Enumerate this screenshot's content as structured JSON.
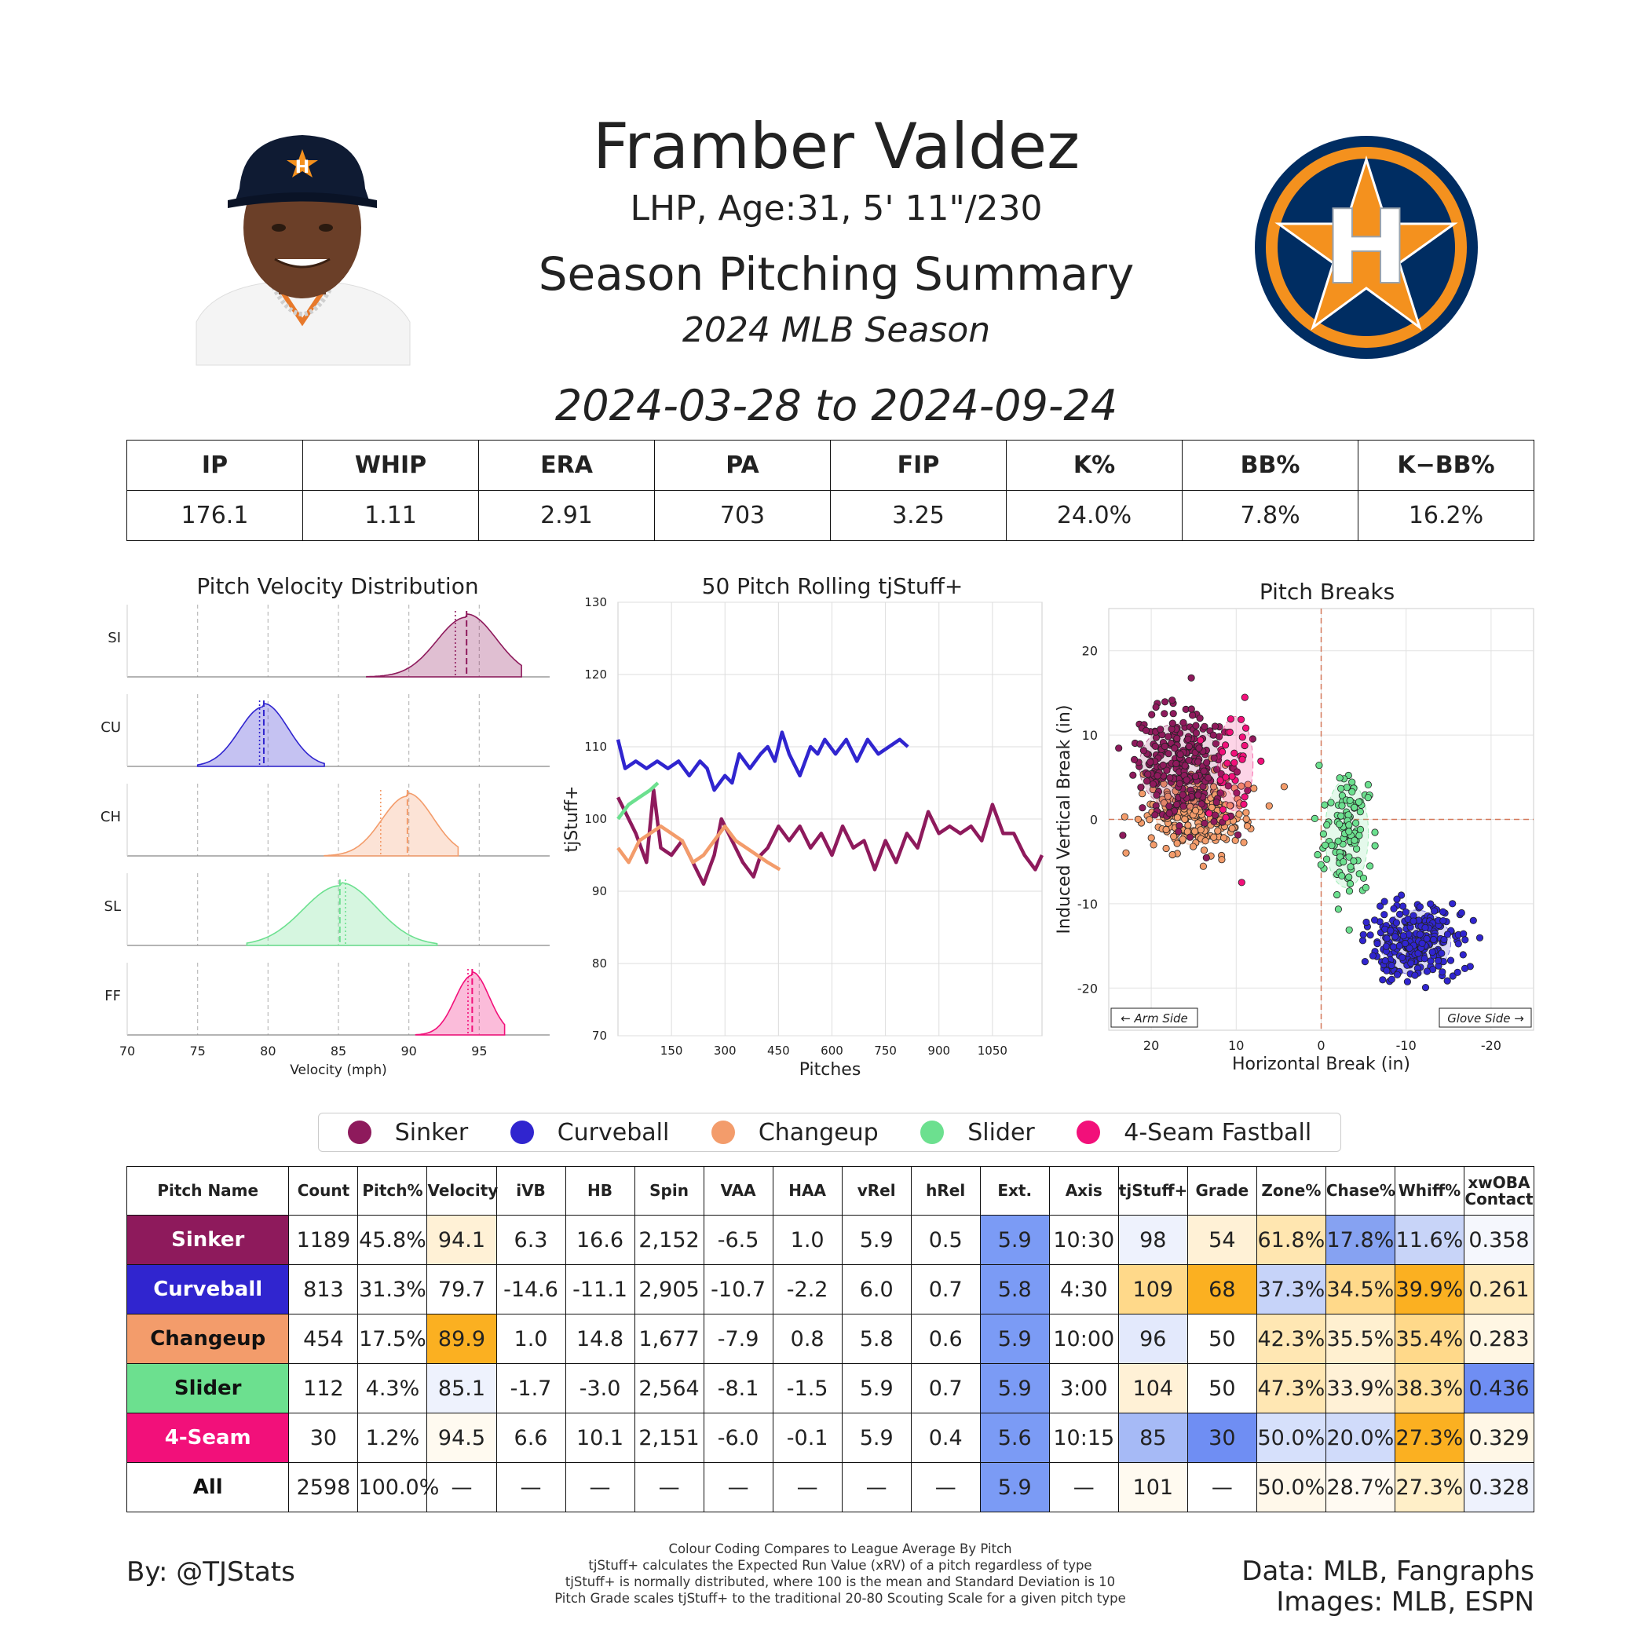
{
  "header": {
    "player_name": "Framber Valdez",
    "player_info": "LHP, Age:31, 5' 11\"/230",
    "summary_title": "Season Pitching Summary",
    "season_label": "2024 MLB Season",
    "date_range": "2024-03-28 to 2024-09-24",
    "logo_letter": "H"
  },
  "colors": {
    "sinker": "#8e1a5c",
    "curveball": "#3025cf",
    "changeup": "#f39c6b",
    "slider": "#6ce08f",
    "fourseam": "#f2107a",
    "astros_navy": "#002d62",
    "astros_orange": "#f4911e",
    "blue_strong": "#6f8ef3",
    "orange_strong": "#fbb021"
  },
  "summary_table": {
    "headers": [
      "IP",
      "WHIP",
      "ERA",
      "PA",
      "FIP",
      "K%",
      "BB%",
      "K−BB%"
    ],
    "values": [
      "176.1",
      "1.11",
      "2.91",
      "703",
      "3.25",
      "24.0%",
      "7.8%",
      "16.2%"
    ]
  },
  "chart_data": [
    {
      "type": "area",
      "title": "Pitch Velocity Distribution",
      "xlabel": "Velocity (mph)",
      "xlim": [
        70,
        100
      ],
      "xticks": [
        "70",
        "75",
        "80",
        "85",
        "90",
        "95"
      ],
      "series": [
        {
          "name": "SI",
          "mean": 94.1,
          "league": 93.3,
          "range": [
            87,
            98
          ]
        },
        {
          "name": "CU",
          "mean": 79.7,
          "league": 79.4,
          "range": [
            75,
            84
          ]
        },
        {
          "name": "CH",
          "mean": 89.9,
          "league": 88.0,
          "range": [
            84,
            93.5
          ]
        },
        {
          "name": "SL",
          "mean": 85.1,
          "league": 85.5,
          "range": [
            78.5,
            92
          ]
        },
        {
          "name": "FF",
          "mean": 94.5,
          "league": 94.2,
          "range": [
            90.5,
            96.8
          ]
        }
      ]
    },
    {
      "type": "line",
      "title": "50 Pitch Rolling tjStuff+",
      "xlabel": "Pitches",
      "ylabel": "tjStuff+",
      "xlim": [
        0,
        1189
      ],
      "ylim": [
        70,
        130
      ],
      "xticks": [
        "150",
        "300",
        "450",
        "600",
        "750",
        "900",
        "1050"
      ],
      "yticks": [
        "70",
        "80",
        "90",
        "100",
        "110",
        "120",
        "130"
      ],
      "series": [
        {
          "name": "Sinker",
          "x": [
            0,
            20,
            50,
            80,
            100,
            120,
            150,
            180,
            210,
            240,
            270,
            290,
            320,
            350,
            380,
            400,
            420,
            450,
            480,
            510,
            540,
            570,
            600,
            630,
            660,
            690,
            720,
            750,
            780,
            810,
            840,
            870,
            900,
            930,
            960,
            990,
            1020,
            1050,
            1080,
            1110,
            1140,
            1170,
            1189
          ],
          "y": [
            103,
            101,
            98,
            94,
            104,
            96,
            95,
            97,
            94,
            91,
            95,
            100,
            97,
            94,
            92,
            95,
            96,
            99,
            97,
            99,
            96,
            98,
            95,
            99,
            96,
            97,
            93,
            97,
            94,
            98,
            96,
            101,
            98,
            99,
            98,
            99,
            97,
            102,
            98,
            98,
            95,
            93,
            95
          ]
        },
        {
          "name": "Curveball",
          "x": [
            0,
            20,
            50,
            80,
            110,
            140,
            170,
            200,
            230,
            250,
            270,
            300,
            320,
            340,
            370,
            400,
            420,
            440,
            460,
            480,
            510,
            540,
            560,
            580,
            610,
            640,
            670,
            700,
            730,
            760,
            790,
            813
          ],
          "y": [
            111,
            107,
            108,
            107,
            108,
            107,
            108,
            106,
            108,
            107,
            104,
            106,
            105,
            109,
            107,
            109,
            110,
            108,
            112,
            109,
            106,
            110,
            109,
            111,
            109,
            111,
            108,
            111,
            109,
            110,
            111,
            110
          ]
        },
        {
          "name": "Changeup",
          "x": [
            0,
            30,
            60,
            90,
            120,
            150,
            180,
            210,
            240,
            270,
            300,
            330,
            360,
            390,
            420,
            454
          ],
          "y": [
            96,
            94,
            97,
            98,
            99,
            98,
            97,
            94,
            95,
            97,
            99,
            97,
            96,
            95,
            94,
            93
          ]
        },
        {
          "name": "Slider",
          "x": [
            0,
            30,
            60,
            90,
            112
          ],
          "y": [
            100,
            102,
            103,
            104,
            105
          ]
        }
      ]
    },
    {
      "type": "scatter",
      "title": "Pitch Breaks",
      "xlabel": "Horizontal Break (in)",
      "ylabel": "Induced Vertical Break (in)",
      "xlim": [
        25,
        -25
      ],
      "ylim": [
        -25,
        25
      ],
      "xticks": [
        "20",
        "10",
        "0",
        "-10",
        "-20"
      ],
      "yticks": [
        "20",
        "10",
        "0",
        "-10",
        "-20"
      ],
      "annotations": [
        "← Arm Side",
        "Glove Side →"
      ],
      "series": [
        {
          "name": "Sinker",
          "center": [
            16.6,
            6.3
          ],
          "spread": [
            3.0,
            3.2
          ],
          "count": 900
        },
        {
          "name": "Changeup",
          "center": [
            14.8,
            1.0
          ],
          "spread": [
            3.0,
            2.5
          ],
          "count": 400
        },
        {
          "name": "Curveball",
          "center": [
            -11.1,
            -14.6
          ],
          "spread": [
            2.6,
            2.4
          ],
          "count": 700
        },
        {
          "name": "Slider",
          "center": [
            -3.0,
            -1.7
          ],
          "spread": [
            1.6,
            4.0
          ],
          "count": 112
        },
        {
          "name": "4-Seam",
          "center": [
            10.1,
            6.6
          ],
          "spread": [
            1.3,
            3.5
          ],
          "count": 30
        }
      ]
    }
  ],
  "legend": [
    {
      "label": "Sinker",
      "color": "#8e1a5c"
    },
    {
      "label": "Curveball",
      "color": "#3025cf"
    },
    {
      "label": "Changeup",
      "color": "#f39c6b"
    },
    {
      "label": "Slider",
      "color": "#6ce08f"
    },
    {
      "label": "4-Seam Fastball",
      "color": "#f2107a"
    }
  ],
  "pitch_table": {
    "headers": [
      "Pitch Name",
      "Count",
      "Pitch%",
      "Velocity",
      "iVB",
      "HB",
      "Spin",
      "VAA",
      "HAA",
      "vRel",
      "hRel",
      "Ext.",
      "Axis",
      "tjStuff+",
      "Grade",
      "Zone%",
      "Chase%",
      "Whiff%",
      "xwOBA Contact"
    ],
    "rows": [
      {
        "name": "Sinker",
        "bg": "#8e1a5c",
        "fg": "#ffffff",
        "cells": [
          "1189",
          "45.8%",
          "94.1",
          "6.3",
          "16.6",
          "2,152",
          "-6.5",
          "1.0",
          "5.9",
          "0.5",
          "5.9",
          "10:30",
          "98",
          "54",
          "61.8%",
          "17.8%",
          "11.6%",
          "0.358"
        ],
        "cell_bg": [
          "",
          "",
          "#fff1d6",
          "",
          "",
          "",
          "",
          "",
          "",
          "",
          "#7b9bf5",
          "",
          "#eef2fd",
          "#fff1d6",
          "#ffe6b0",
          "#86a2f2",
          "#c8d4f8",
          "#f5f7fd"
        ]
      },
      {
        "name": "Curveball",
        "bg": "#3025cf",
        "fg": "#ffffff",
        "cells": [
          "813",
          "31.3%",
          "79.7",
          "-14.6",
          "-11.1",
          "2,905",
          "-10.7",
          "-2.2",
          "6.0",
          "0.7",
          "5.8",
          "4:30",
          "109",
          "68",
          "37.3%",
          "34.5%",
          "39.9%",
          "0.261"
        ],
        "cell_bg": [
          "",
          "",
          "",
          "",
          "",
          "",
          "",
          "",
          "",
          "",
          "#7b9bf5",
          "",
          "#ffd98a",
          "#fbb021",
          "#c6d3f9",
          "#ffd98a",
          "#fbb021",
          "#ffe9b8"
        ]
      },
      {
        "name": "Changeup",
        "bg": "#f39c6b",
        "fg": "#111111",
        "cells": [
          "454",
          "17.5%",
          "89.9",
          "1.0",
          "14.8",
          "1,677",
          "-7.9",
          "0.8",
          "5.8",
          "0.6",
          "5.9",
          "10:00",
          "96",
          "50",
          "42.3%",
          "35.5%",
          "35.4%",
          "0.283"
        ],
        "cell_bg": [
          "",
          "",
          "#fbb021",
          "",
          "",
          "",
          "",
          "",
          "",
          "",
          "#7b9bf5",
          "",
          "#e3e9fc",
          "",
          "#ffe7b3",
          "#fff0d0",
          "#ffd98a",
          "#fff6e3"
        ]
      },
      {
        "name": "Slider",
        "bg": "#6ce08f",
        "fg": "#111111",
        "cells": [
          "112",
          "4.3%",
          "85.1",
          "-1.7",
          "-3.0",
          "2,564",
          "-8.1",
          "-1.5",
          "5.9",
          "0.7",
          "5.9",
          "3:00",
          "104",
          "50",
          "47.3%",
          "33.9%",
          "38.3%",
          "0.436"
        ],
        "cell_bg": [
          "",
          "",
          "#eef2fd",
          "",
          "",
          "",
          "",
          "",
          "",
          "",
          "#7b9bf5",
          "",
          "#fff1d6",
          "",
          "#ffe7b3",
          "#fff1d6",
          "#ffdf9a",
          "#6f8ef3"
        ]
      },
      {
        "name": "4-Seam",
        "bg": "#f2107a",
        "fg": "#ffffff",
        "cells": [
          "30",
          "1.2%",
          "94.5",
          "6.6",
          "10.1",
          "2,151",
          "-6.0",
          "-0.1",
          "5.9",
          "0.4",
          "5.6",
          "10:15",
          "85",
          "30",
          "50.0%",
          "20.0%",
          "27.3%",
          "0.329"
        ],
        "cell_bg": [
          "",
          "",
          "#fffaf0",
          "",
          "",
          "",
          "",
          "",
          "",
          "",
          "#7b9bf5",
          "",
          "#a6baf6",
          "#6f8ef3",
          "#d6e0fb",
          "#d0dbfa",
          "#fbb021",
          "#fff7e6"
        ]
      },
      {
        "name": "All",
        "bg": "#ffffff",
        "fg": "#111111",
        "cells": [
          "2598",
          "100.0%",
          "—",
          "—",
          "—",
          "—",
          "—",
          "—",
          "—",
          "—",
          "5.9",
          "—",
          "101",
          "—",
          "50.0%",
          "28.7%",
          "27.3%",
          "0.328"
        ],
        "cell_bg": [
          "",
          "",
          "",
          "",
          "",
          "",
          "",
          "",
          "",
          "",
          "#7b9bf5",
          "",
          "#fffaf0",
          "",
          "#fff8ea",
          "#fffaf2",
          "#ffefc8",
          "#eef2fd"
        ]
      }
    ]
  },
  "footer": {
    "by": "By: @TJStats",
    "notes": [
      "Colour Coding Compares to League Average By Pitch",
      "tjStuff+ calculates the Expected Run Value (xRV) of a pitch regardless of type",
      "tjStuff+ is normally distributed, where 100 is the mean and Standard Deviation is 10",
      "Pitch Grade scales tjStuff+ to the traditional 20-80 Scouting Scale for a given pitch type"
    ],
    "data_source": "Data: MLB, Fangraphs",
    "images_source": "Images: MLB, ESPN"
  }
}
